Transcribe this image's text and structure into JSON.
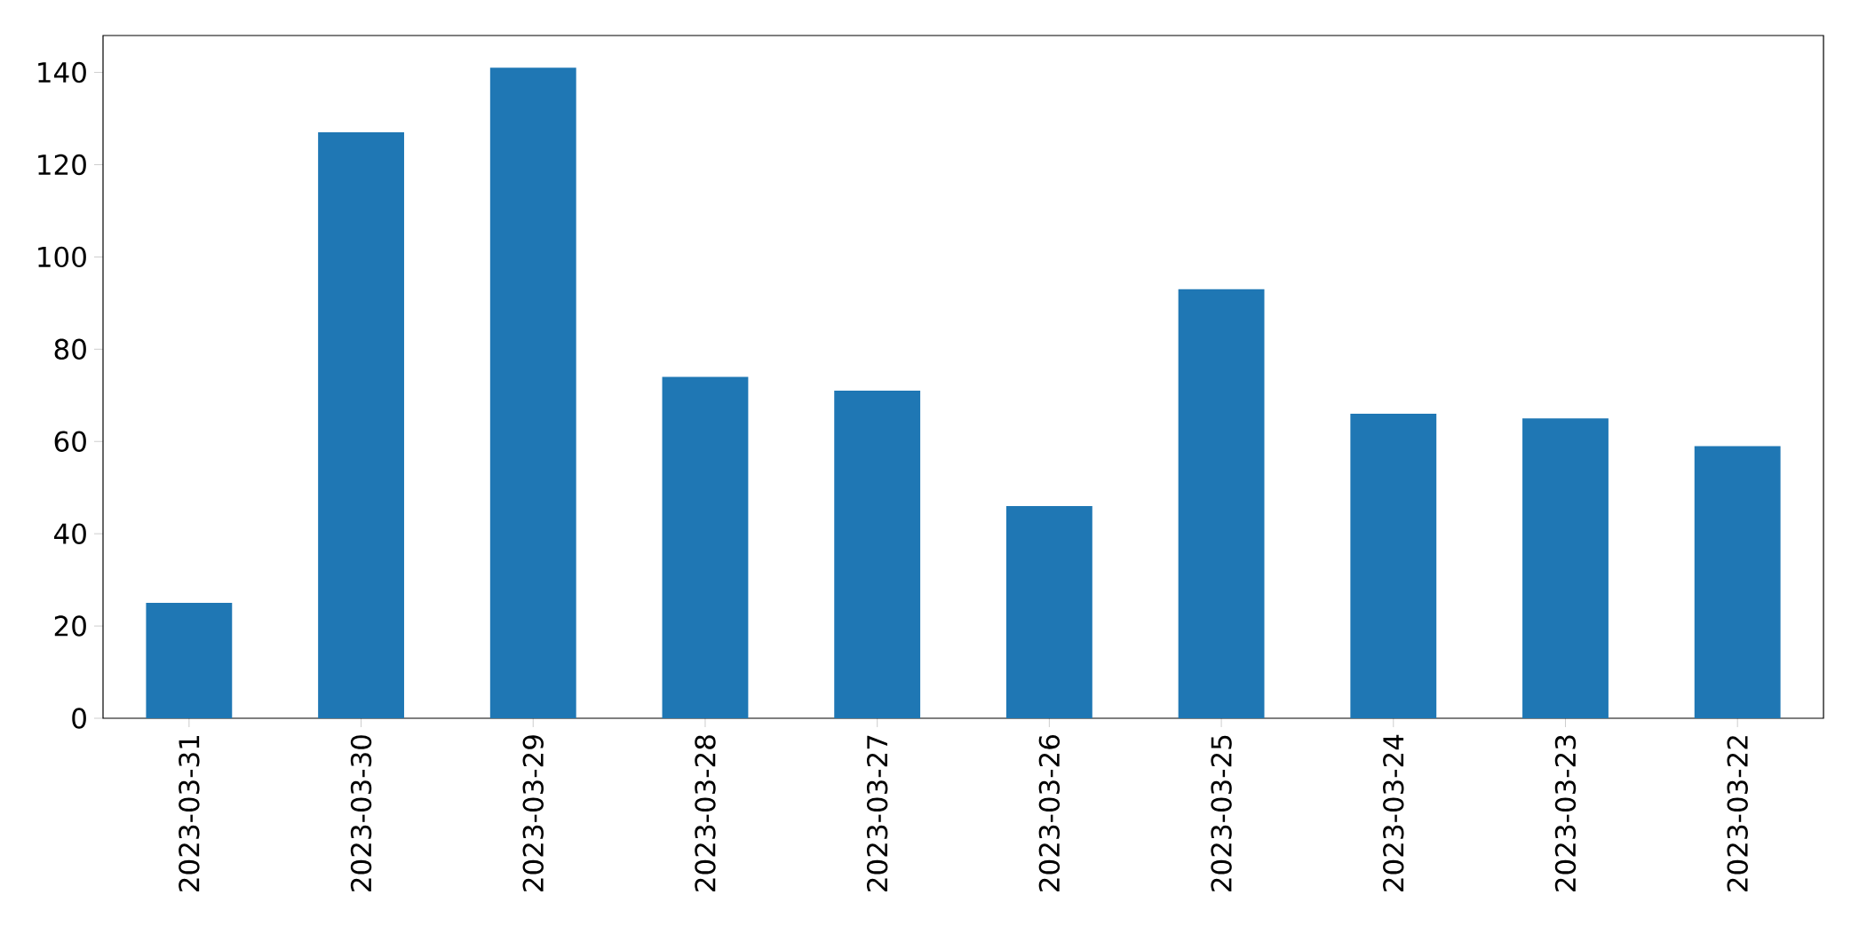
{
  "chart_data": {
    "type": "bar",
    "categories": [
      "2023-03-31",
      "2023-03-30",
      "2023-03-29",
      "2023-03-28",
      "2023-03-27",
      "2023-03-26",
      "2023-03-25",
      "2023-03-24",
      "2023-03-23",
      "2023-03-22"
    ],
    "values": [
      25,
      127,
      141,
      74,
      71,
      46,
      93,
      66,
      65,
      59
    ],
    "color": "#1f77b4",
    "ylim": [
      0,
      148
    ],
    "yticks": [
      0,
      20,
      40,
      60,
      80,
      100,
      120,
      140
    ],
    "grid": false
  }
}
